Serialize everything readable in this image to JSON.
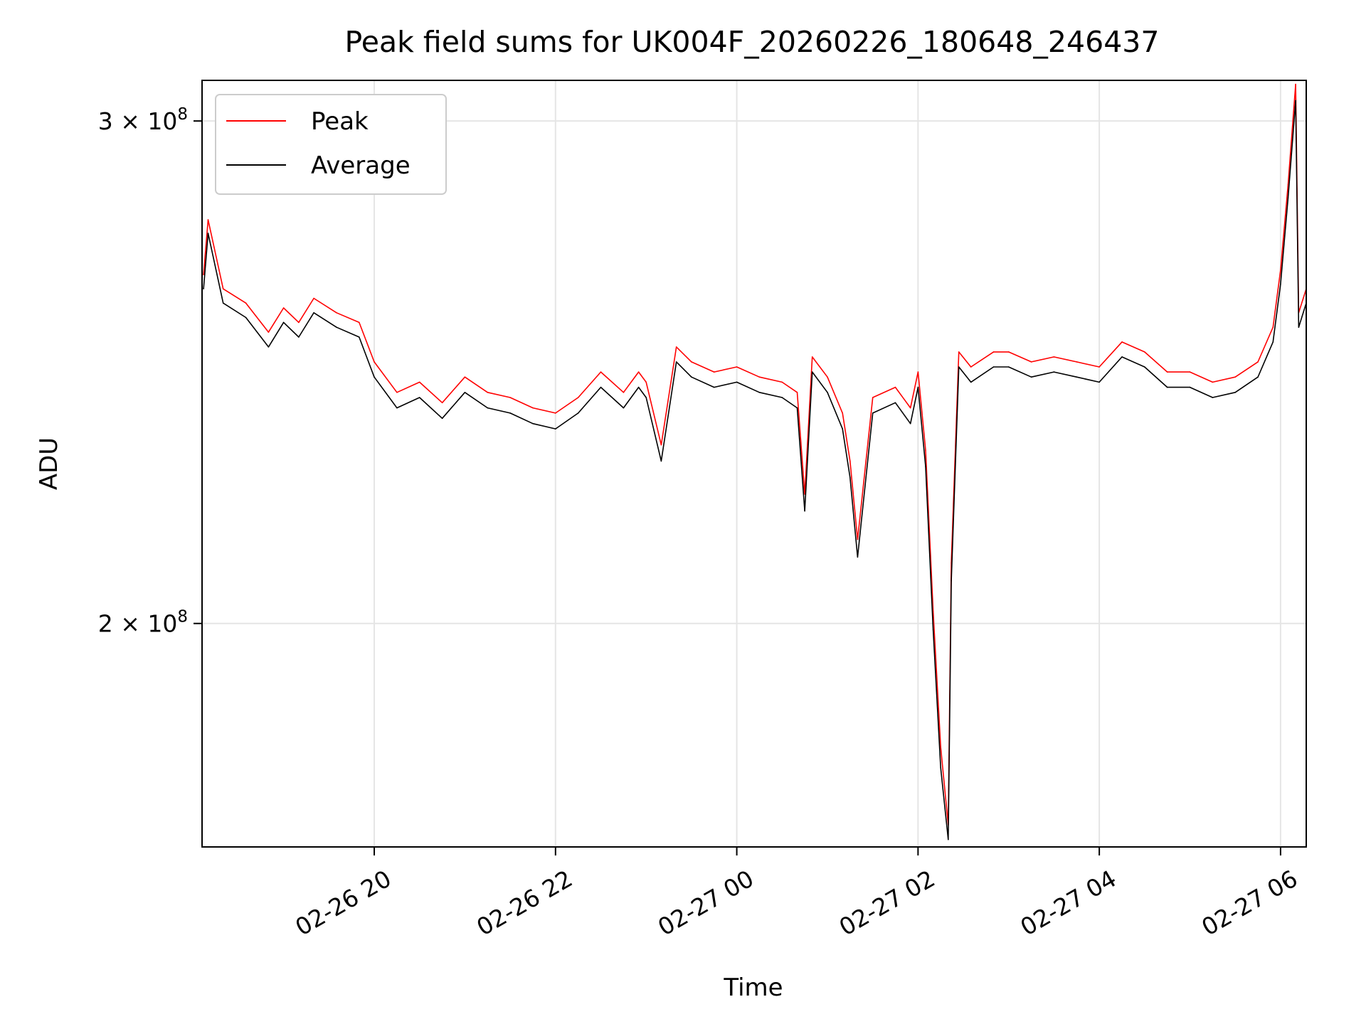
{
  "chart_data": {
    "type": "line",
    "title": "Peak field sums for UK004F_20260226_180648_246437",
    "xlabel": "Time",
    "ylabel": "ADU",
    "y_scale": "log",
    "ylim": [
      167000000,
      310000000
    ],
    "xlim": [
      "2026-02-26 18:06",
      "2026-02-27 06:17"
    ],
    "x_ticks": [
      {
        "value": "2026-02-26 20:00",
        "label": "02-26 20"
      },
      {
        "value": "2026-02-26 22:00",
        "label": "02-26 22"
      },
      {
        "value": "2026-02-27 00:00",
        "label": "02-27 00"
      },
      {
        "value": "2026-02-27 02:00",
        "label": "02-27 02"
      },
      {
        "value": "2026-02-27 04:00",
        "label": "02-27 04"
      },
      {
        "value": "2026-02-27 06:00",
        "label": "02-27 06"
      }
    ],
    "y_ticks": [
      {
        "value": 200000000,
        "base": "2",
        "exp": "8"
      },
      {
        "value": 300000000,
        "base": "3",
        "exp": "8"
      }
    ],
    "grid": true,
    "legend": "upper-left",
    "series": [
      {
        "name": "Peak",
        "color": "#ff0000",
        "x": [
          "2026-02-26 18:07",
          "2026-02-26 18:10",
          "2026-02-26 18:20",
          "2026-02-26 18:35",
          "2026-02-26 18:50",
          "2026-02-26 19:00",
          "2026-02-26 19:10",
          "2026-02-26 19:20",
          "2026-02-26 19:35",
          "2026-02-26 19:50",
          "2026-02-26 20:00",
          "2026-02-26 20:15",
          "2026-02-26 20:30",
          "2026-02-26 20:45",
          "2026-02-26 21:00",
          "2026-02-26 21:15",
          "2026-02-26 21:30",
          "2026-02-26 21:45",
          "2026-02-26 22:00",
          "2026-02-26 22:15",
          "2026-02-26 22:30",
          "2026-02-26 22:45",
          "2026-02-26 22:55",
          "2026-02-26 23:00",
          "2026-02-26 23:10",
          "2026-02-26 23:20",
          "2026-02-26 23:30",
          "2026-02-26 23:45",
          "2026-02-27 00:00",
          "2026-02-27 00:15",
          "2026-02-27 00:30",
          "2026-02-27 00:40",
          "2026-02-27 00:45",
          "2026-02-27 00:50",
          "2026-02-27 01:00",
          "2026-02-27 01:10",
          "2026-02-27 01:15",
          "2026-02-27 01:20",
          "2026-02-27 01:30",
          "2026-02-27 01:45",
          "2026-02-27 01:55",
          "2026-02-27 02:00",
          "2026-02-27 02:05",
          "2026-02-27 02:10",
          "2026-02-27 02:15",
          "2026-02-27 02:20",
          "2026-02-27 02:22",
          "2026-02-27 02:27",
          "2026-02-27 02:35",
          "2026-02-27 02:50",
          "2026-02-27 03:00",
          "2026-02-27 03:15",
          "2026-02-27 03:30",
          "2026-02-27 03:45",
          "2026-02-27 04:00",
          "2026-02-27 04:15",
          "2026-02-27 04:30",
          "2026-02-27 04:45",
          "2026-02-27 05:00",
          "2026-02-27 05:15",
          "2026-02-27 05:30",
          "2026-02-27 05:45",
          "2026-02-27 05:55",
          "2026-02-27 06:00",
          "2026-02-27 06:05",
          "2026-02-27 06:10",
          "2026-02-27 06:12",
          "2026-02-27 06:17"
        ],
        "values": [
          265000000,
          277000000,
          262000000,
          259000000,
          253000000,
          258000000,
          255000000,
          260000000,
          257000000,
          255000000,
          247000000,
          241000000,
          243000000,
          239000000,
          244000000,
          241000000,
          240000000,
          238000000,
          237000000,
          240000000,
          245000000,
          241000000,
          245000000,
          243000000,
          231000000,
          250000000,
          247000000,
          245000000,
          246000000,
          244000000,
          243000000,
          241000000,
          222000000,
          248000000,
          244000000,
          237000000,
          228000000,
          214000000,
          240000000,
          242000000,
          238000000,
          245000000,
          230000000,
          202000000,
          181000000,
          170000000,
          210000000,
          249000000,
          246000000,
          249000000,
          249000000,
          247000000,
          248000000,
          247000000,
          246000000,
          251000000,
          249000000,
          245000000,
          245000000,
          243000000,
          244000000,
          247000000,
          254000000,
          266000000,
          285000000,
          309000000,
          257000000,
          262000000
        ]
      },
      {
        "name": "Average",
        "color": "#000000",
        "x": [
          "2026-02-26 18:07",
          "2026-02-26 18:10",
          "2026-02-26 18:20",
          "2026-02-26 18:35",
          "2026-02-26 18:50",
          "2026-02-26 19:00",
          "2026-02-26 19:10",
          "2026-02-26 19:20",
          "2026-02-26 19:35",
          "2026-02-26 19:50",
          "2026-02-26 20:00",
          "2026-02-26 20:15",
          "2026-02-26 20:30",
          "2026-02-26 20:45",
          "2026-02-26 21:00",
          "2026-02-26 21:15",
          "2026-02-26 21:30",
          "2026-02-26 21:45",
          "2026-02-26 22:00",
          "2026-02-26 22:15",
          "2026-02-26 22:30",
          "2026-02-26 22:45",
          "2026-02-26 22:55",
          "2026-02-26 23:00",
          "2026-02-26 23:10",
          "2026-02-26 23:20",
          "2026-02-26 23:30",
          "2026-02-26 23:45",
          "2026-02-27 00:00",
          "2026-02-27 00:15",
          "2026-02-27 00:30",
          "2026-02-27 00:40",
          "2026-02-27 00:45",
          "2026-02-27 00:50",
          "2026-02-27 01:00",
          "2026-02-27 01:10",
          "2026-02-27 01:15",
          "2026-02-27 01:20",
          "2026-02-27 01:30",
          "2026-02-27 01:45",
          "2026-02-27 01:55",
          "2026-02-27 02:00",
          "2026-02-27 02:05",
          "2026-02-27 02:10",
          "2026-02-27 02:15",
          "2026-02-27 02:20",
          "2026-02-27 02:22",
          "2026-02-27 02:27",
          "2026-02-27 02:35",
          "2026-02-27 02:50",
          "2026-02-27 03:00",
          "2026-02-27 03:15",
          "2026-02-27 03:30",
          "2026-02-27 03:45",
          "2026-02-27 04:00",
          "2026-02-27 04:15",
          "2026-02-27 04:30",
          "2026-02-27 04:45",
          "2026-02-27 05:00",
          "2026-02-27 05:15",
          "2026-02-27 05:30",
          "2026-02-27 05:45",
          "2026-02-27 05:55",
          "2026-02-27 06:00",
          "2026-02-27 06:05",
          "2026-02-27 06:10",
          "2026-02-27 06:12",
          "2026-02-27 06:17"
        ],
        "values": [
          262000000,
          274000000,
          259000000,
          256000000,
          250000000,
          255000000,
          252000000,
          257000000,
          254000000,
          252000000,
          244000000,
          238000000,
          240000000,
          236000000,
          241000000,
          238000000,
          237000000,
          235000000,
          234000000,
          237000000,
          242000000,
          238000000,
          242000000,
          240000000,
          228000000,
          247000000,
          244000000,
          242000000,
          243000000,
          241000000,
          240000000,
          238000000,
          219000000,
          245000000,
          241000000,
          234000000,
          225000000,
          211000000,
          237000000,
          239000000,
          235000000,
          242000000,
          227000000,
          199000000,
          178000000,
          168000000,
          207000000,
          246000000,
          243000000,
          246000000,
          246000000,
          244000000,
          245000000,
          244000000,
          243000000,
          248000000,
          246000000,
          242000000,
          242000000,
          240000000,
          241000000,
          244000000,
          251000000,
          263000000,
          282000000,
          305000000,
          254000000,
          259000000
        ]
      }
    ]
  }
}
